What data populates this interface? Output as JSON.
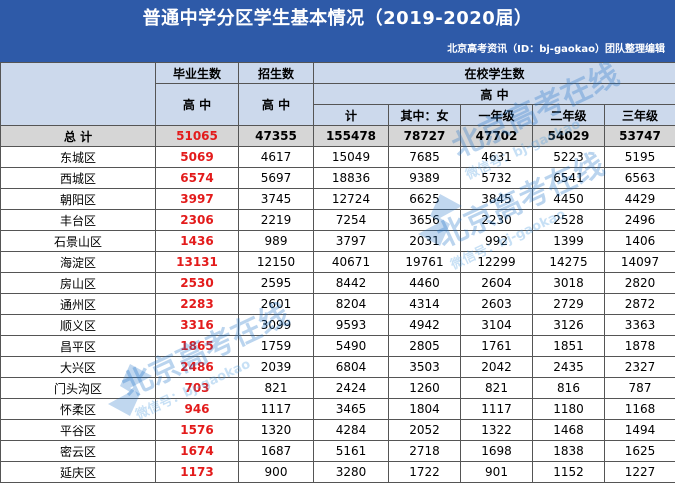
{
  "banner": {
    "title": "普通中学分区学生基本情况（2019-2020届）",
    "source": "北京高考资讯（ID：bj-gaokao）团队整理编辑"
  },
  "headers": {
    "graduates": "毕业生数",
    "enrollment": "招生数",
    "in_school": "在校学生数",
    "high_school": "高  中",
    "total": "计",
    "female": "其中：女",
    "grade1": "一年级",
    "grade2": "二年级",
    "grade3": "三年级"
  },
  "rows": [
    {
      "name": "总  计",
      "graduates": "51065",
      "enrollment": "47355",
      "total": "155478",
      "female": "78727",
      "g1": "47702",
      "g2": "54029",
      "g3": "53747"
    },
    {
      "name": "东城区",
      "graduates": "5069",
      "enrollment": "4617",
      "total": "15049",
      "female": "7685",
      "g1": "4631",
      "g2": "5223",
      "g3": "5195"
    },
    {
      "name": "西城区",
      "graduates": "6574",
      "enrollment": "5697",
      "total": "18836",
      "female": "9389",
      "g1": "5732",
      "g2": "6541",
      "g3": "6563"
    },
    {
      "name": "朝阳区",
      "graduates": "3997",
      "enrollment": "3745",
      "total": "12724",
      "female": "6625",
      "g1": "3845",
      "g2": "4450",
      "g3": "4429"
    },
    {
      "name": "丰台区",
      "graduates": "2306",
      "enrollment": "2219",
      "total": "7254",
      "female": "3656",
      "g1": "2230",
      "g2": "2528",
      "g3": "2496"
    },
    {
      "name": "石景山区",
      "graduates": "1436",
      "enrollment": "989",
      "total": "3797",
      "female": "2031",
      "g1": "992",
      "g2": "1399",
      "g3": "1406"
    },
    {
      "name": "海淀区",
      "graduates": "13131",
      "enrollment": "12150",
      "total": "40671",
      "female": "19761",
      "g1": "12299",
      "g2": "14275",
      "g3": "14097"
    },
    {
      "name": "房山区",
      "graduates": "2530",
      "enrollment": "2595",
      "total": "8442",
      "female": "4460",
      "g1": "2604",
      "g2": "3018",
      "g3": "2820"
    },
    {
      "name": "通州区",
      "graduates": "2283",
      "enrollment": "2601",
      "total": "8204",
      "female": "4314",
      "g1": "2603",
      "g2": "2729",
      "g3": "2872"
    },
    {
      "name": "顺义区",
      "graduates": "3316",
      "enrollment": "3099",
      "total": "9593",
      "female": "4942",
      "g1": "3104",
      "g2": "3126",
      "g3": "3363"
    },
    {
      "name": "昌平区",
      "graduates": "1865",
      "enrollment": "1759",
      "total": "5490",
      "female": "2805",
      "g1": "1761",
      "g2": "1851",
      "g3": "1878"
    },
    {
      "name": "大兴区",
      "graduates": "2486",
      "enrollment": "2039",
      "total": "6804",
      "female": "3503",
      "g1": "2042",
      "g2": "2435",
      "g3": "2327"
    },
    {
      "name": "门头沟区",
      "graduates": "703",
      "enrollment": "821",
      "total": "2424",
      "female": "1260",
      "g1": "821",
      "g2": "816",
      "g3": "787"
    },
    {
      "name": "怀柔区",
      "graduates": "946",
      "enrollment": "1117",
      "total": "3465",
      "female": "1804",
      "g1": "1117",
      "g2": "1180",
      "g3": "1168"
    },
    {
      "name": "平谷区",
      "graduates": "1576",
      "enrollment": "1320",
      "total": "4284",
      "female": "2052",
      "g1": "1322",
      "g2": "1468",
      "g3": "1494"
    },
    {
      "name": "密云区",
      "graduates": "1674",
      "enrollment": "1687",
      "total": "5161",
      "female": "2718",
      "g1": "1698",
      "g2": "1838",
      "g3": "1625"
    },
    {
      "name": "延庆区",
      "graduates": "1173",
      "enrollment": "900",
      "total": "3280",
      "female": "1722",
      "g1": "901",
      "g2": "1152",
      "g3": "1227"
    }
  ],
  "watermarks": [
    {
      "main": "北京高考在线",
      "sub": "微信号：bj-gaokao"
    },
    {
      "main": "北京高考在线",
      "sub": "微信号：bj-gaokao"
    },
    {
      "main": "北京高考在线",
      "sub": "微信号：bj-gaokao"
    }
  ],
  "colors": {
    "banner": "#2e5aa8",
    "header_fill": "#ccd9ec",
    "total_fill": "#d6d6d6",
    "highlight_red": "#e31b1b",
    "watermark": "#1f73c8"
  }
}
